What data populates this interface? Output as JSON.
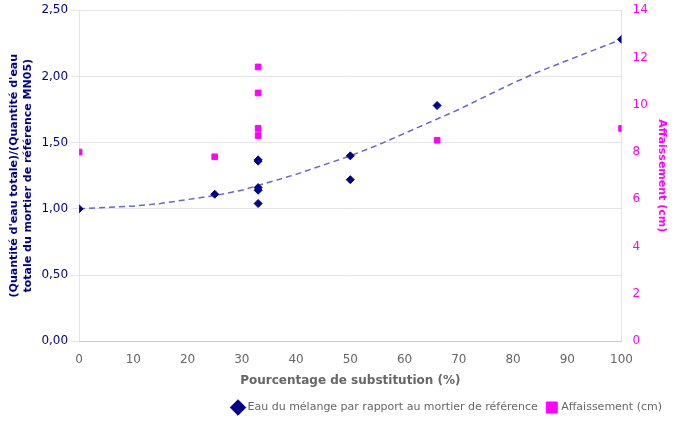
{
  "chart_data": {
    "type": "scatter",
    "xlabel": "Pourcentage de substitution (%)",
    "ylabel": [
      "(Quantité d'eau totale)/(Quantité d'eau",
      "totale du mortier de référence MN05)"
    ],
    "y2label": "Affaissement (cm)",
    "xlim": [
      0,
      100
    ],
    "xticks": [
      0,
      10,
      20,
      30,
      40,
      50,
      60,
      70,
      80,
      90,
      100
    ],
    "ylim": [
      0.0,
      2.5
    ],
    "yticks": [
      {
        "value": 0.0,
        "label": "0,00"
      },
      {
        "value": 0.5,
        "label": "0,50"
      },
      {
        "value": 1.0,
        "label": "1,00"
      },
      {
        "value": 1.5,
        "label": "1,50"
      },
      {
        "value": 2.0,
        "label": "2,00"
      },
      {
        "value": 2.5,
        "label": "2,50"
      }
    ],
    "y2lim": [
      0,
      14
    ],
    "y2ticks": [
      0,
      2,
      4,
      6,
      8,
      10,
      12,
      14
    ],
    "grid": "y",
    "legend": "lower right",
    "series": [
      {
        "type": "line",
        "line_style": "dashed",
        "color": "#6666CC",
        "x": [
          0,
          5,
          10,
          15,
          20,
          25,
          30,
          35,
          40,
          45,
          50,
          55,
          60,
          65,
          70,
          75,
          80,
          85,
          90,
          95,
          100
        ],
        "values": [
          1.0,
          1.01,
          1.02,
          1.04,
          1.07,
          1.1,
          1.14,
          1.2,
          1.26,
          1.33,
          1.4,
          1.48,
          1.57,
          1.66,
          1.75,
          1.85,
          1.95,
          2.04,
          2.12,
          2.2,
          2.28
        ]
      },
      {
        "name": "Eau du mélange par rapport au mortier de référence",
        "color": "#00008B",
        "marker": "diamond",
        "x": [
          0,
          25,
          33,
          33,
          33,
          33,
          33,
          50,
          50,
          66,
          100
        ],
        "values": [
          1.0,
          1.11,
          1.36,
          1.37,
          1.14,
          1.04,
          1.16,
          1.22,
          1.4,
          1.78,
          2.28
        ]
      },
      {
        "name": "Affaissement (cm)",
        "color": "#FF00FF",
        "marker": "square",
        "axis": "y2",
        "x": [
          0,
          25,
          33,
          33,
          33,
          33,
          66,
          100
        ],
        "values": [
          8.0,
          7.8,
          11.6,
          10.5,
          9.0,
          8.7,
          8.5,
          9.0
        ]
      }
    ]
  }
}
